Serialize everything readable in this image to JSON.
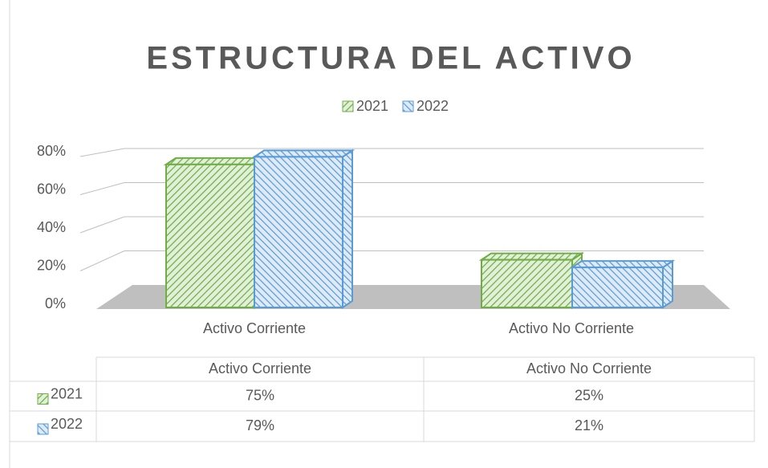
{
  "chart_data": {
    "type": "bar3d",
    "title": "ESTRUCTURA DEL ACTIVO",
    "categories": [
      "Activo Corriente",
      "Activo No Corriente"
    ],
    "series": [
      {
        "name": "2021",
        "color": "#70ad47",
        "values": [
          75,
          25
        ],
        "value_labels": [
          "75%",
          "25%"
        ]
      },
      {
        "name": "2022",
        "color": "#5b9bd5",
        "values": [
          79,
          21
        ],
        "value_labels": [
          "79%",
          "21%"
        ]
      }
    ],
    "ylim": [
      0,
      80
    ],
    "yticks": [
      {
        "value": 0,
        "label": "0%"
      },
      {
        "value": 20,
        "label": "20%"
      },
      {
        "value": 40,
        "label": "40%"
      },
      {
        "value": 60,
        "label": "60%"
      },
      {
        "value": 80,
        "label": "80%"
      }
    ],
    "grid": true,
    "legend": "top",
    "data_table": true
  }
}
